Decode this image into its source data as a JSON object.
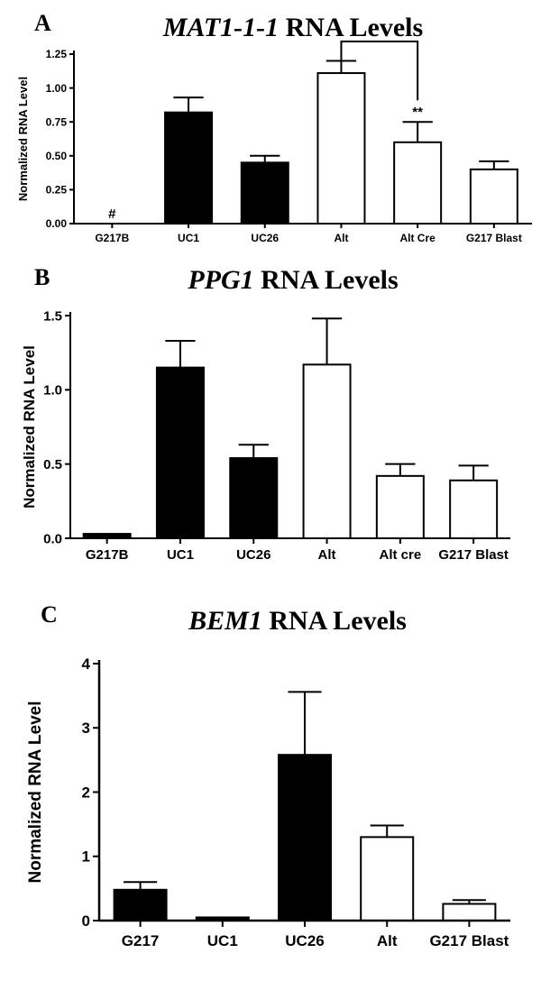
{
  "chart_data": [
    {
      "type": "bar",
      "panel_label": "A",
      "title_gene": "MAT1-1-1",
      "title_rest": " RNA Levels",
      "ylabel": "Normalized RNA Level",
      "ylim": [
        0,
        1.25
      ],
      "yticks": [
        "0.00",
        "0.25",
        "0.50",
        "0.75",
        "1.00",
        "1.25"
      ],
      "ytick_values": [
        0,
        0.25,
        0.5,
        0.75,
        1.0,
        1.25
      ],
      "categories": [
        "G217B",
        "UC1",
        "UC26",
        "Alt",
        "Alt Cre",
        "G217 Blast"
      ],
      "values": [
        0,
        0.82,
        0.45,
        1.11,
        0.6,
        0.4
      ],
      "errors": [
        0,
        0.11,
        0.05,
        0.09,
        0.15,
        0.06
      ],
      "fill": [
        "white",
        "black",
        "black",
        "white",
        "white",
        "white"
      ],
      "annotations": [
        {
          "category_index": 0,
          "text": "#"
        },
        {
          "category_index": 4,
          "text": "**"
        }
      ],
      "bracket": {
        "from_index": 3,
        "to_index": 4
      }
    },
    {
      "type": "bar",
      "panel_label": "B",
      "title_gene": "PPG1",
      "title_rest": " RNA Levels",
      "ylabel": "Normalized RNA Level",
      "ylim": [
        0,
        1.5
      ],
      "yticks": [
        "0.0",
        "0.5",
        "1.0",
        "1.5"
      ],
      "ytick_values": [
        0,
        0.5,
        1.0,
        1.5
      ],
      "categories": [
        "G217B",
        "UC1",
        "UC26",
        "Alt",
        "Alt cre",
        "G217 Blast"
      ],
      "values": [
        0.03,
        1.15,
        0.54,
        1.17,
        0.42,
        0.39
      ],
      "errors": [
        0,
        0.18,
        0.09,
        0.31,
        0.08,
        0.1
      ],
      "fill": [
        "black",
        "black",
        "black",
        "white",
        "white",
        "white"
      ],
      "annotations": [],
      "bracket": null
    },
    {
      "type": "bar",
      "panel_label": "C",
      "title_gene": "BEM1",
      "title_rest": " RNA Levels",
      "ylabel": "Normalized RNA Level",
      "ylim": [
        0,
        4
      ],
      "yticks": [
        "0",
        "1",
        "2",
        "3",
        "4"
      ],
      "ytick_values": [
        0,
        1,
        2,
        3,
        4
      ],
      "categories": [
        "G217",
        "UC1",
        "UC26",
        "Alt",
        "G217 Blast"
      ],
      "values": [
        0.48,
        0.05,
        2.58,
        1.3,
        0.26
      ],
      "errors": [
        0.12,
        0,
        0.98,
        0.18,
        0.06
      ],
      "fill": [
        "black",
        "black",
        "black",
        "white",
        "white"
      ],
      "annotations": [],
      "bracket": null
    }
  ]
}
